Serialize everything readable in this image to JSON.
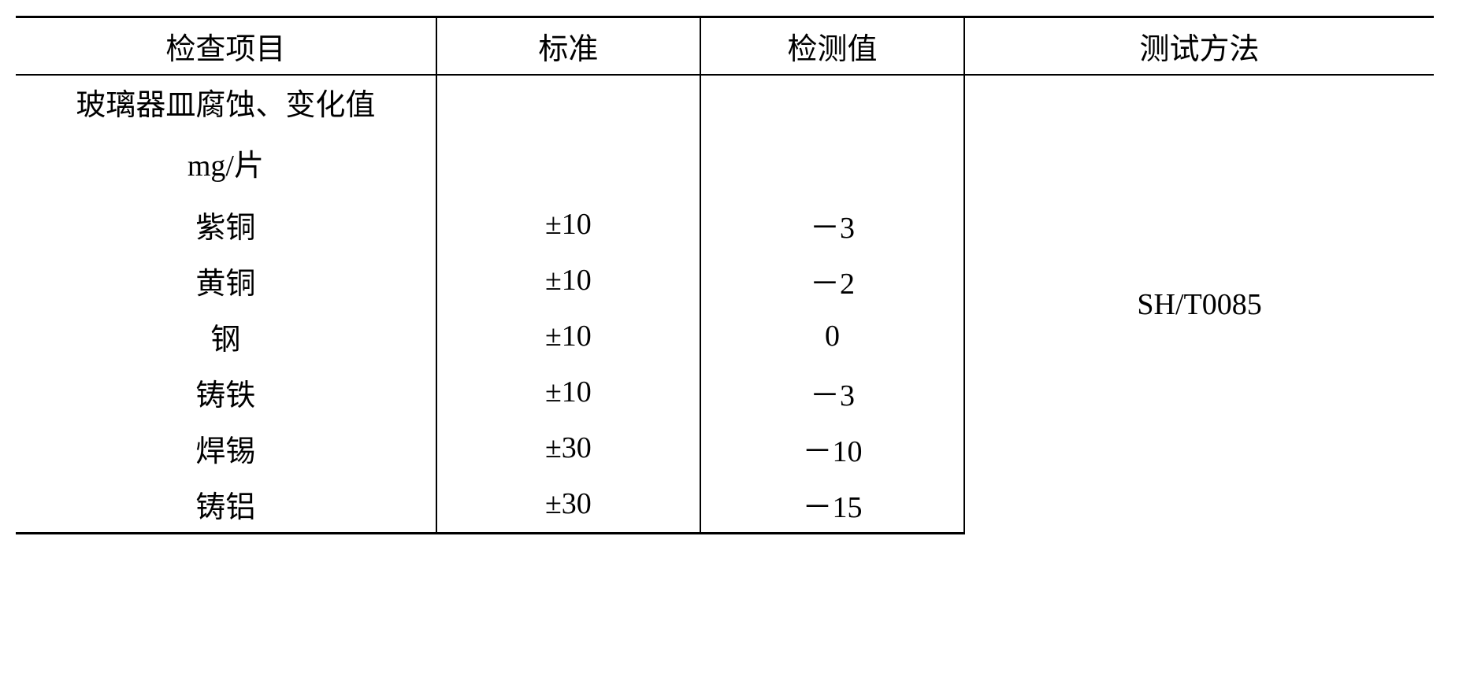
{
  "table": {
    "headers": {
      "item": "检查项目",
      "std": "标准",
      "value": "检测值",
      "method": "测试方法"
    },
    "subheader_line1": "玻璃器皿腐蚀、变化值",
    "subheader_line2": "mg/片",
    "method_text": "SH/T0085",
    "rows": [
      {
        "item": "紫铜",
        "std": "±10",
        "value": "－3"
      },
      {
        "item": "黄铜",
        "std": "±10",
        "value": "－2"
      },
      {
        "item": "钢",
        "std": "±10",
        "value": "0"
      },
      {
        "item": "铸铁",
        "std": "±10",
        "value": "－3"
      },
      {
        "item": "焊锡",
        "std": "±30",
        "value": "－10"
      },
      {
        "item": "铸铝",
        "std": "±30",
        "value": "－15"
      }
    ],
    "colors": {
      "border": "#000000",
      "text": "#000000",
      "background": "#ffffff"
    },
    "font_size_pt": 28
  }
}
